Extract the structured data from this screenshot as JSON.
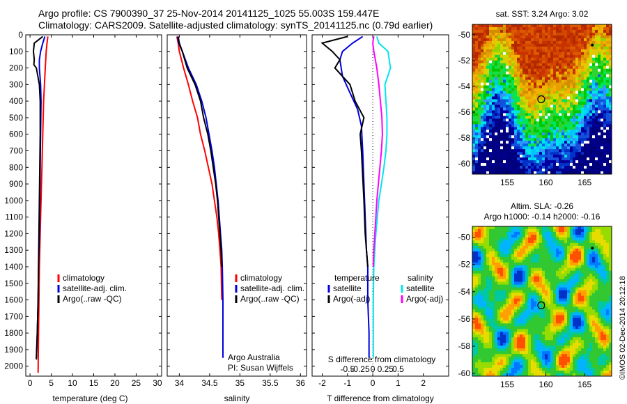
{
  "header": {
    "line1": "Argo profile: CS 7900390_37 25-Nov-2014 20141125_1025 55.003S 159.447E",
    "line2": "Climatology: CARS2009. Satellite-adjusted climatology: synTS_20141125.nc (0.79d earlier)"
  },
  "credit": "©IMOS 02-Dec-2014 20:12:18",
  "colors": {
    "climatology": "#ff0000",
    "satellite": "#0000dd",
    "argo": "#000000",
    "salinity_satellite": "#00e5ee",
    "salinity_argo": "#ff00ff"
  },
  "chart_data": [
    {
      "type": "line",
      "id": "temperature",
      "xlabel": "temperature (deg C)",
      "ylabel": "",
      "xlim": [
        -1,
        31
      ],
      "ylim": [
        0,
        2060
      ],
      "y_reversed": true,
      "xticks": [
        0,
        5,
        10,
        15,
        20,
        25,
        30
      ],
      "yticks": [
        0,
        100,
        200,
        300,
        400,
        500,
        600,
        700,
        800,
        900,
        1000,
        1100,
        1200,
        1300,
        1400,
        1500,
        1600,
        1700,
        1800,
        1900,
        2000
      ],
      "legend": {
        "position": "lower-center",
        "entries": [
          "climatology",
          "satellite-adj. clim.",
          "Argo(..raw -QC)"
        ]
      },
      "series": [
        {
          "name": "climatology",
          "color": "#ff0000",
          "points": [
            [
              4.2,
              10
            ],
            [
              4.0,
              50
            ],
            [
              3.8,
              100
            ],
            [
              3.6,
              200
            ],
            [
              3.4,
              300
            ],
            [
              3.2,
              400
            ],
            [
              3.0,
              600
            ],
            [
              2.8,
              800
            ],
            [
              2.6,
              1000
            ],
            [
              2.4,
              1200
            ],
            [
              2.2,
              1400
            ],
            [
              2.1,
              1600
            ],
            [
              2.0,
              1800
            ],
            [
              1.9,
              2040
            ]
          ]
        },
        {
          "name": "satellite-adj. clim.",
          "color": "#0000dd",
          "points": [
            [
              3.5,
              10
            ],
            [
              3.0,
              50
            ],
            [
              2.5,
              100
            ],
            [
              2.2,
              150
            ],
            [
              2.2,
              200
            ],
            [
              2.5,
              300
            ],
            [
              2.6,
              400
            ],
            [
              2.5,
              600
            ],
            [
              2.4,
              800
            ],
            [
              2.3,
              1000
            ],
            [
              2.2,
              1200
            ],
            [
              2.0,
              1400
            ],
            [
              1.9,
              1600
            ],
            [
              1.7,
              1800
            ],
            [
              1.5,
              1950
            ]
          ]
        },
        {
          "name": "Argo(..raw -QC)",
          "color": "#000000",
          "points": [
            [
              3.0,
              10
            ],
            [
              1.0,
              50
            ],
            [
              0.8,
              100
            ],
            [
              1.0,
              150
            ],
            [
              0.9,
              180
            ],
            [
              1.5,
              200
            ],
            [
              2.2,
              300
            ],
            [
              2.4,
              400
            ],
            [
              2.4,
              600
            ],
            [
              2.3,
              800
            ],
            [
              2.2,
              1000
            ],
            [
              2.1,
              1200
            ],
            [
              2.0,
              1400
            ],
            [
              1.9,
              1600
            ],
            [
              1.7,
              1800
            ],
            [
              1.5,
              1960
            ]
          ]
        }
      ]
    },
    {
      "type": "line",
      "id": "salinity",
      "xlabel": "salinity",
      "ylabel": "",
      "xlim": [
        33.8,
        36.1
      ],
      "ylim": [
        0,
        2060
      ],
      "y_reversed": true,
      "xticks": [
        34,
        34.5,
        35,
        35.5,
        36
      ],
      "xtick_labels": [
        "34",
        "34.5",
        "35",
        "35.5",
        "36"
      ],
      "legend": {
        "position": "lower-center",
        "entries": [
          "climatology",
          "satellite-adj. clim.",
          "Argo(..raw -QC)"
        ]
      },
      "annotation": [
        "Argo Australia",
        "PI: Susan Wijffels"
      ],
      "series": [
        {
          "name": "climatology",
          "color": "#ff0000",
          "points": [
            [
              33.96,
              10
            ],
            [
              33.98,
              50
            ],
            [
              34.0,
              100
            ],
            [
              34.07,
              200
            ],
            [
              34.15,
              300
            ],
            [
              34.22,
              400
            ],
            [
              34.3,
              500
            ],
            [
              34.35,
              600
            ],
            [
              34.42,
              700
            ],
            [
              34.48,
              800
            ],
            [
              34.54,
              900
            ],
            [
              34.58,
              1000
            ],
            [
              34.62,
              1100
            ],
            [
              34.65,
              1200
            ],
            [
              34.67,
              1300
            ],
            [
              34.69,
              1400
            ],
            [
              34.7,
              1600
            ]
          ]
        },
        {
          "name": "satellite-adj. clim.",
          "color": "#0000dd",
          "points": [
            [
              33.97,
              10
            ],
            [
              33.99,
              50
            ],
            [
              34.05,
              100
            ],
            [
              34.15,
              200
            ],
            [
              34.28,
              300
            ],
            [
              34.37,
              400
            ],
            [
              34.44,
              500
            ],
            [
              34.49,
              600
            ],
            [
              34.54,
              700
            ],
            [
              34.58,
              800
            ],
            [
              34.61,
              900
            ],
            [
              34.64,
              1000
            ],
            [
              34.66,
              1100
            ],
            [
              34.68,
              1200
            ],
            [
              34.7,
              1300
            ],
            [
              34.71,
              1400
            ],
            [
              34.72,
              1600
            ],
            [
              34.72,
              1800
            ],
            [
              34.72,
              1950
            ]
          ]
        },
        {
          "name": "Argo(..raw -QC)",
          "color": "#000000",
          "points": [
            [
              33.98,
              10
            ],
            [
              34.0,
              50
            ],
            [
              34.05,
              100
            ],
            [
              34.13,
              200
            ],
            [
              34.26,
              300
            ],
            [
              34.35,
              400
            ],
            [
              34.4,
              500
            ],
            [
              34.47,
              600
            ],
            [
              34.52,
              700
            ],
            [
              34.56,
              800
            ],
            [
              34.6,
              900
            ],
            [
              34.63,
              1000
            ],
            [
              34.65,
              1100
            ],
            [
              34.67,
              1200
            ],
            [
              34.69,
              1300
            ],
            [
              34.7,
              1400
            ]
          ]
        }
      ]
    },
    {
      "type": "line",
      "id": "difference",
      "xlabel": "T difference from climatology",
      "xlabel2": "S difference from climatology",
      "xlim": [
        -2.4,
        3.0
      ],
      "ylim": [
        0,
        2060
      ],
      "y_reversed": true,
      "xticks": [
        -2,
        -1,
        0,
        1,
        2
      ],
      "secondary_xticks": [
        -0.5,
        -0.25,
        0,
        0.25,
        0.5
      ],
      "secondary_xtick_labels": [
        "-0.5",
        "-0.25",
        "0",
        "0.25",
        "0.5"
      ],
      "legend": {
        "position": "lower-center",
        "groups": [
          {
            "title": "temperature",
            "entries": [
              "satellite",
              "Argo(-adj)"
            ]
          },
          {
            "title": "salinity",
            "entries": [
              "satellite",
              "Argo(-adj)"
            ]
          }
        ]
      },
      "series": [
        {
          "name": "satellite",
          "group": "temperature",
          "color": "#0000dd",
          "points": [
            [
              -0.4,
              10
            ],
            [
              -0.8,
              50
            ],
            [
              -1.2,
              100
            ],
            [
              -1.3,
              150
            ],
            [
              -1.2,
              250
            ],
            [
              -0.9,
              350
            ],
            [
              -0.6,
              450
            ],
            [
              -0.45,
              550
            ],
            [
              -0.4,
              700
            ],
            [
              -0.35,
              900
            ],
            [
              -0.3,
              1100
            ],
            [
              -0.25,
              1300
            ],
            [
              -0.2,
              1400
            ],
            [
              -0.2,
              1600
            ],
            [
              -0.15,
              1800
            ],
            [
              -0.15,
              1950
            ]
          ]
        },
        {
          "name": "Argo(-adj)",
          "group": "temperature",
          "color": "#000000",
          "points": [
            [
              -1.0,
              10
            ],
            [
              -2.0,
              50
            ],
            [
              -1.6,
              100
            ],
            [
              -1.3,
              150
            ],
            [
              -1.5,
              200
            ],
            [
              -0.9,
              300
            ],
            [
              -0.7,
              400
            ],
            [
              -0.35,
              500
            ],
            [
              -0.5,
              600
            ],
            [
              -0.45,
              700
            ],
            [
              -0.4,
              850
            ],
            [
              -0.35,
              1000
            ],
            [
              -0.3,
              1200
            ],
            [
              -0.2,
              1400
            ]
          ]
        },
        {
          "name": "satellite",
          "group": "salinity",
          "color": "#00e5ee",
          "points": [
            [
              0.08,
              10
            ],
            [
              0.12,
              50
            ],
            [
              0.3,
              100
            ],
            [
              0.35,
              200
            ],
            [
              0.24,
              300
            ],
            [
              0.26,
              400
            ],
            [
              0.28,
              500
            ],
            [
              0.28,
              600
            ],
            [
              0.26,
              700
            ],
            [
              0.22,
              800
            ],
            [
              0.17,
              900
            ],
            [
              0.12,
              1000
            ],
            [
              0.09,
              1100
            ],
            [
              0.06,
              1200
            ],
            [
              0.04,
              1300
            ],
            [
              0.02,
              1400
            ],
            [
              0.01,
              1600
            ],
            [
              0.01,
              1800
            ],
            [
              0.01,
              1950
            ]
          ]
        },
        {
          "name": "Argo(-adj)",
          "group": "salinity",
          "color": "#ff00ff",
          "points": [
            [
              0.02,
              10
            ],
            [
              0.0,
              50
            ],
            [
              0.02,
              100
            ],
            [
              0.08,
              200
            ],
            [
              0.12,
              300
            ],
            [
              0.15,
              400
            ],
            [
              0.18,
              500
            ],
            [
              0.19,
              600
            ],
            [
              0.17,
              700
            ],
            [
              0.14,
              800
            ],
            [
              0.11,
              900
            ],
            [
              0.08,
              1000
            ],
            [
              0.06,
              1100
            ],
            [
              0.04,
              1200
            ],
            [
              0.02,
              1300
            ],
            [
              0.01,
              1400
            ]
          ]
        }
      ]
    },
    {
      "type": "heatmap",
      "id": "sst-map",
      "title": "sat. SST: 3.24  Argo: 3.02",
      "xlim": [
        150.5,
        168.5
      ],
      "ylim": [
        -60.8,
        -49.2
      ],
      "xticks": [
        155,
        160,
        165
      ],
      "yticks": [
        -50,
        -52,
        -54,
        -56,
        -58,
        -60
      ],
      "markers": [
        {
          "type": "circle",
          "lon": 159.4,
          "lat": -55.0
        },
        {
          "type": "dot",
          "lon": 166.0,
          "lat": -50.8
        }
      ]
    },
    {
      "type": "heatmap",
      "id": "sla-map",
      "title": "Altim. SLA: -0.26",
      "title2": "Argo h1000: -0.14 h2000: -0.16",
      "xlim": [
        150.5,
        168.5
      ],
      "ylim": [
        -60.2,
        -49.2
      ],
      "xticks": [
        155,
        160,
        165
      ],
      "yticks": [
        -50,
        -52,
        -54,
        -56,
        -58,
        -60
      ],
      "markers": [
        {
          "type": "circle",
          "lon": 159.4,
          "lat": -55.0
        },
        {
          "type": "dot",
          "lon": 166.0,
          "lat": -50.8
        }
      ]
    }
  ]
}
